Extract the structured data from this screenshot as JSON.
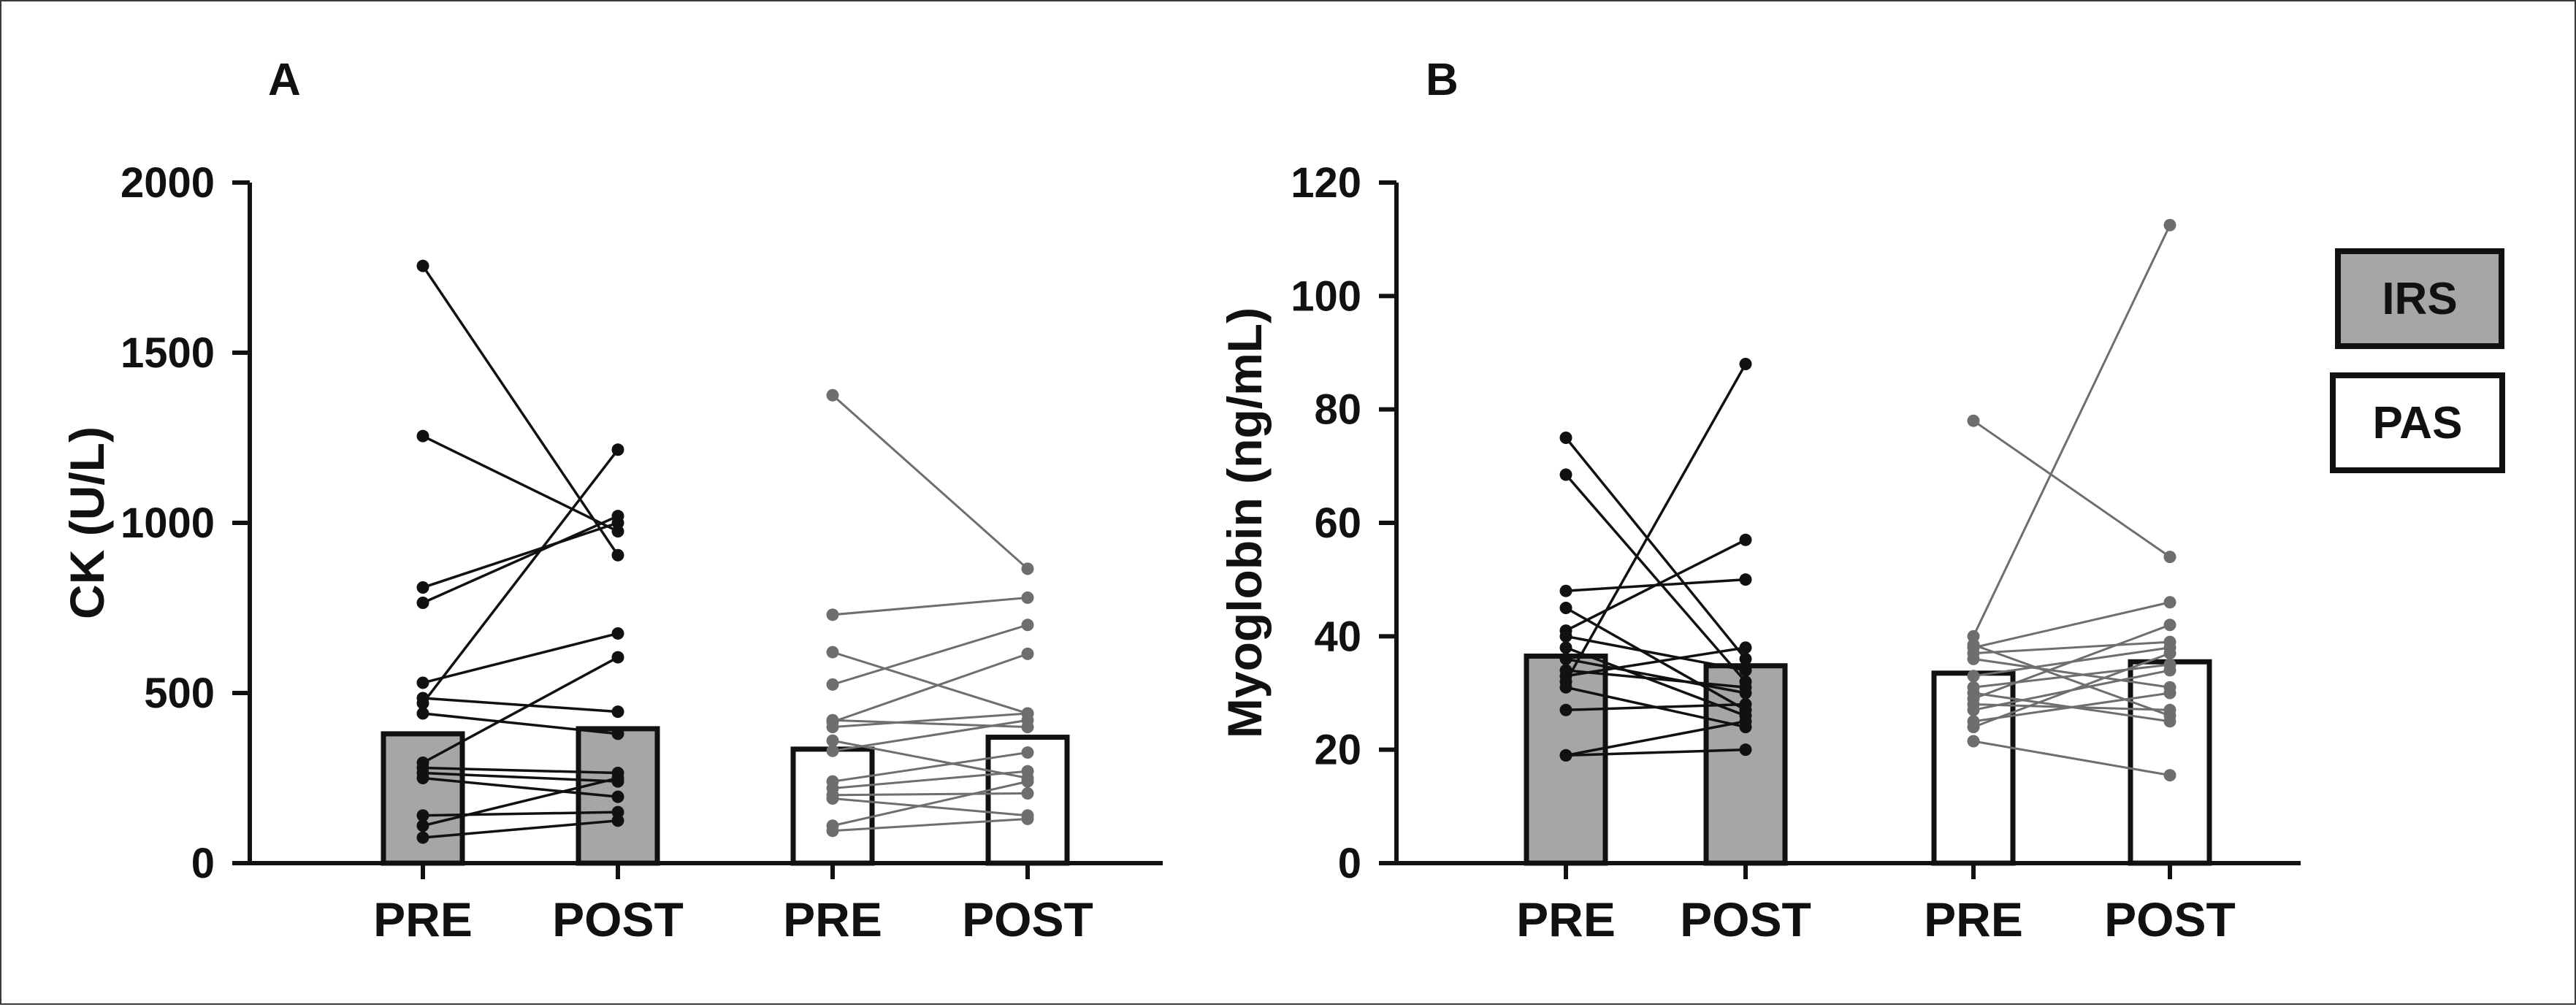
{
  "colors": {
    "irs_fill": "#a6a6a6",
    "pas_fill": "#ffffff",
    "irs_line": "#111111",
    "pas_line": "#6e6e6e",
    "axis": "#111111"
  },
  "legend": {
    "items": [
      {
        "label": "IRS",
        "fill": "#a6a6a6"
      },
      {
        "label": "PAS",
        "fill": "#ffffff"
      }
    ]
  },
  "chart_data": [
    {
      "type": "bar",
      "panel": "A",
      "ylabel": "CK (U/L)",
      "xlabel": "",
      "ylim": [
        0,
        2000
      ],
      "yticks": [
        0,
        500,
        1000,
        1500,
        2000
      ],
      "categories": [
        "PRE",
        "POST",
        "PRE",
        "POST"
      ],
      "groups": [
        {
          "name": "IRS",
          "bars": [
            {
              "label": "PRE",
              "mean": 380
            },
            {
              "label": "POST",
              "mean": 395
            }
          ],
          "pairs": [
            [
              1755,
              905
            ],
            [
              1255,
              975
            ],
            [
              810,
              1000
            ],
            [
              765,
              1020
            ],
            [
              530,
              675
            ],
            [
              485,
              445
            ],
            [
              470,
              1215
            ],
            [
              440,
              380
            ],
            [
              295,
              605
            ],
            [
              280,
              265
            ],
            [
              265,
              240
            ],
            [
              250,
              195
            ],
            [
              140,
              150
            ],
            [
              110,
              250
            ],
            [
              75,
              125
            ]
          ]
        },
        {
          "name": "PAS",
          "bars": [
            {
              "label": "PRE",
              "mean": 335
            },
            {
              "label": "POST",
              "mean": 370
            }
          ],
          "pairs": [
            [
              1375,
              865
            ],
            [
              730,
              780
            ],
            [
              620,
              440
            ],
            [
              525,
              700
            ],
            [
              420,
              400
            ],
            [
              415,
              615
            ],
            [
              400,
              440
            ],
            [
              360,
              250
            ],
            [
              330,
              420
            ],
            [
              240,
              325
            ],
            [
              220,
              270
            ],
            [
              200,
              205
            ],
            [
              190,
              140
            ],
            [
              110,
              240
            ],
            [
              95,
              130
            ]
          ]
        }
      ]
    },
    {
      "type": "bar",
      "panel": "B",
      "ylabel": "Myoglobin (ng/mL)",
      "xlabel": "",
      "ylim": [
        0,
        120
      ],
      "yticks": [
        0,
        20,
        40,
        60,
        80,
        100,
        120
      ],
      "categories": [
        "PRE",
        "POST",
        "PRE",
        "POST"
      ],
      "groups": [
        {
          "name": "IRS",
          "bars": [
            {
              "label": "PRE",
              "mean": 36.5
            },
            {
              "label": "POST",
              "mean": 34.8
            }
          ],
          "pairs": [
            [
              75,
              36
            ],
            [
              68.5,
              32
            ],
            [
              48,
              50
            ],
            [
              45,
              27
            ],
            [
              41,
              57
            ],
            [
              40,
              34
            ],
            [
              38,
              26
            ],
            [
              36,
              30
            ],
            [
              34,
              31
            ],
            [
              33,
              38
            ],
            [
              32,
              88
            ],
            [
              31,
              24
            ],
            [
              27,
              28
            ],
            [
              19,
              20
            ],
            [
              19,
              25
            ]
          ]
        },
        {
          "name": "PAS",
          "bars": [
            {
              "label": "PRE",
              "mean": 33.5
            },
            {
              "label": "POST",
              "mean": 35.5
            }
          ],
          "pairs": [
            [
              78,
              54
            ],
            [
              40,
              112.5
            ],
            [
              38.5,
              26
            ],
            [
              38,
              46
            ],
            [
              37,
              39
            ],
            [
              36,
              31
            ],
            [
              33,
              38
            ],
            [
              31,
              35
            ],
            [
              30,
              25
            ],
            [
              29,
              42
            ],
            [
              28,
              27
            ],
            [
              27,
              34
            ],
            [
              25,
              30
            ],
            [
              24,
              37
            ],
            [
              21.5,
              15.5
            ]
          ]
        }
      ]
    }
  ]
}
